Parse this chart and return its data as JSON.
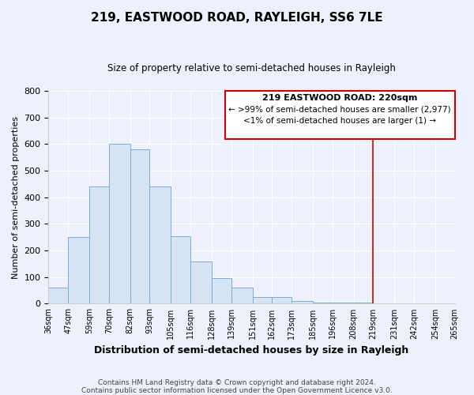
{
  "title": "219, EASTWOOD ROAD, RAYLEIGH, SS6 7LE",
  "subtitle": "Size of property relative to semi-detached houses in Rayleigh",
  "xlabel": "Distribution of semi-detached houses by size in Rayleigh",
  "ylabel": "Number of semi-detached properties",
  "bar_edges": [
    36,
    47,
    59,
    70,
    82,
    93,
    105,
    116,
    128,
    139,
    151,
    162,
    173,
    185,
    196,
    208,
    219,
    231,
    242,
    254,
    265
  ],
  "bar_heights": [
    60,
    250,
    440,
    600,
    580,
    440,
    255,
    160,
    95,
    60,
    25,
    25,
    10,
    5,
    5,
    5,
    0,
    0,
    0,
    0
  ],
  "bar_color": "#d6e4f5",
  "bar_edge_color": "#7aadd4",
  "vline_x": 219,
  "vline_color": "#cc0000",
  "ylim": [
    0,
    800
  ],
  "yticks": [
    0,
    100,
    200,
    300,
    400,
    500,
    600,
    700,
    800
  ],
  "xtick_labels": [
    "36sqm",
    "47sqm",
    "59sqm",
    "70sqm",
    "82sqm",
    "93sqm",
    "105sqm",
    "116sqm",
    "128sqm",
    "139sqm",
    "151sqm",
    "162sqm",
    "173sqm",
    "185sqm",
    "196sqm",
    "208sqm",
    "219sqm",
    "231sqm",
    "242sqm",
    "254sqm",
    "265sqm"
  ],
  "annotation_title": "219 EASTWOOD ROAD: 220sqm",
  "annotation_line1": "← >99% of semi-detached houses are smaller (2,977)",
  "annotation_line2": "<1% of semi-detached houses are larger (1) →",
  "footer1": "Contains HM Land Registry data © Crown copyright and database right 2024.",
  "footer2": "Contains public sector information licensed under the Open Government Licence v3.0.",
  "bg_color": "#eef1fb",
  "plot_bg_color": "#eef1fb",
  "grid_color": "#ffffff"
}
